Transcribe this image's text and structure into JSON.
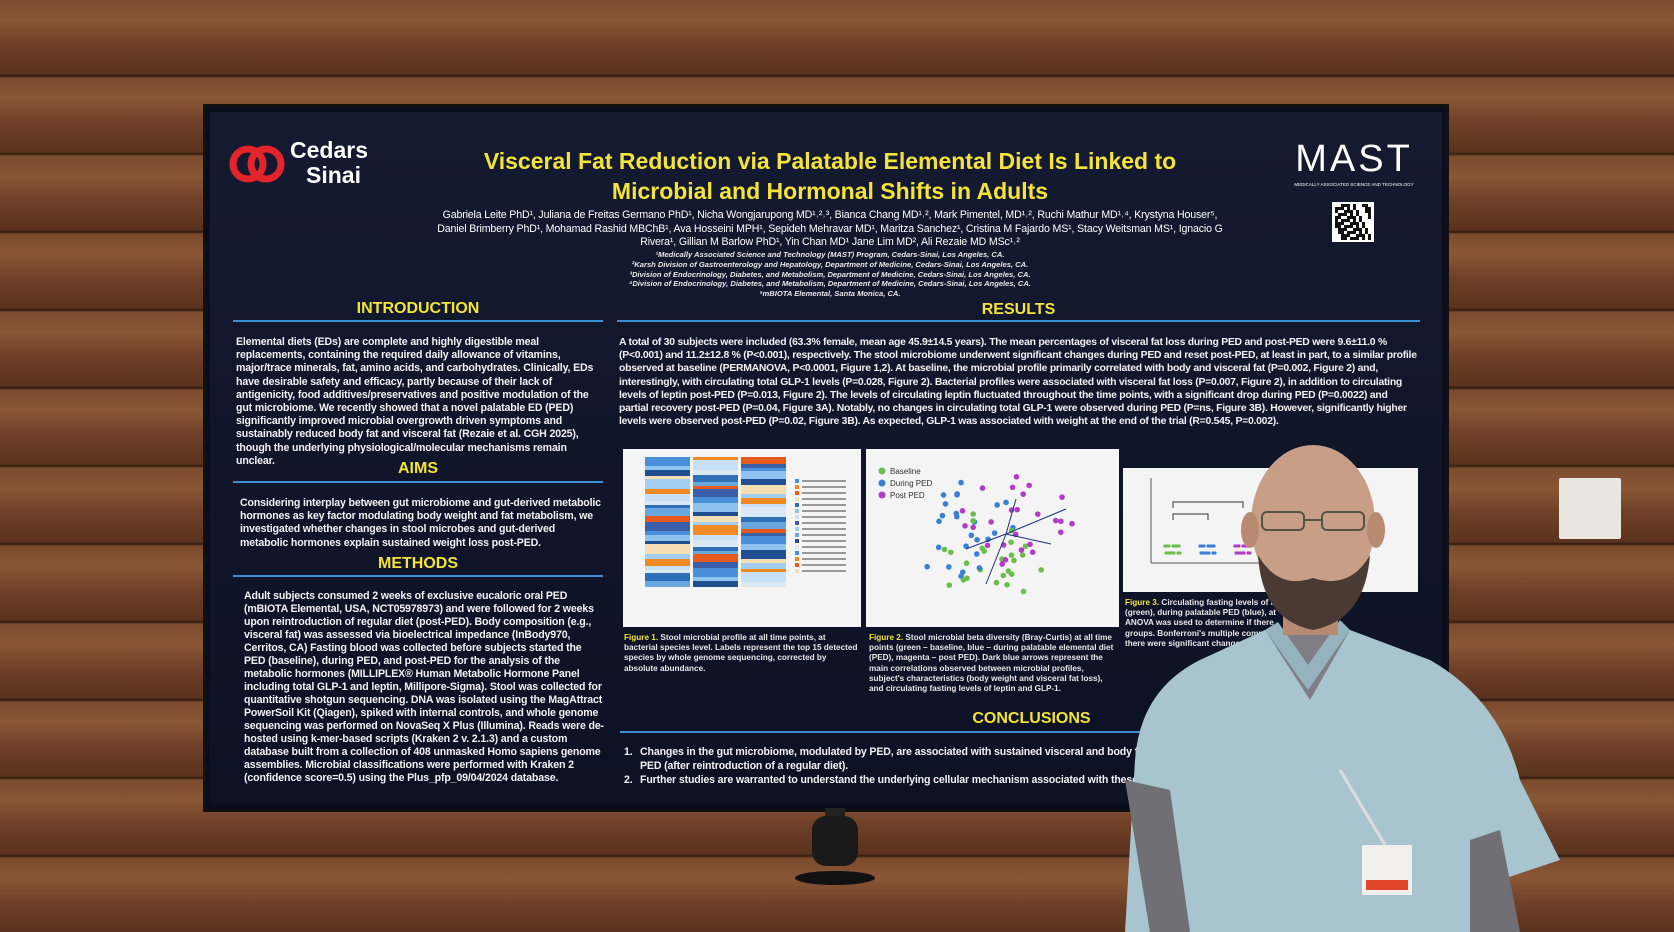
{
  "poster": {
    "logo_left": [
      "Cedars",
      "Sinai"
    ],
    "logo_right": "MAST",
    "logo_right_subtitle": "MEDICALLY ASSOCIATED SCIENCE AND TECHNOLOGY",
    "title": [
      "Visceral Fat Reduction via Palatable Elemental Diet Is Linked to",
      "Microbial and Hormonal Shifts in Adults"
    ],
    "authors": [
      "Gabriela Leite PhD¹, Juliana de Freitas Germano PhD¹, Nicha Wongjarupong MD¹˒²˒³, Bianca Chang MD¹˒², Mark Pimentel, MD¹˒², Ruchi Mathur MD¹˒⁴, Krystyna Houser⁵,",
      "Daniel Brimberry PhD¹, Mohamad Rashid MBChB¹, Ava Hosseini MPH¹, Sepideh Mehravar MD¹, Maritza Sanchez¹, Cristina M Fajardo MS¹, Stacy Weitsman MS¹, Ignacio G",
      "Rivera¹, Gillian M Barlow PhD¹, Yin Chan MD¹ Jane Lim MD², Ali Rezaie MD MSc¹˒²"
    ],
    "affiliations": [
      "¹Medically Associated Science and Technology (MAST) Program, Cedars-Sinai, Los Angeles, CA.",
      "²Karsh Division of Gastroenterology and Hepatology, Department of Medicine, Cedars-Sinai, Los Angeles, CA.",
      "³Division of Endocrinology, Diabetes, and Metabolism, Department of Medicine, Cedars-Sinai, Los Angeles, CA.",
      "⁴Division of Endocrinology, Diabetes, and Metabolism, Department of Medicine, Cedars-Sinai, Los Angeles, CA.",
      "⁵mBIOTA Elemental, Santa Monica, CA."
    ],
    "introduction": {
      "heading": "INTRODUCTION",
      "text": "Elemental diets (EDs) are complete and highly digestible meal replacements, containing the required daily allowance of vitamins, major/trace minerals, fat, amino acids, and carbohydrates. Clinically, EDs have desirable safety and efficacy, partly because of their lack of antigenicity, food additives/preservatives and positive modulation of the gut microbiome. We recently showed that a novel palatable ED (PED) significantly improved microbial overgrowth driven symptoms and sustainably reduced body fat and visceral fat (Rezaie et al. CGH 2025), though the underlying physiological/molecular mechanisms remain unclear."
    },
    "aims": {
      "heading": "AIMS",
      "text": "Considering interplay between gut microbiome and gut-derived metabolic hormones as key factor modulating body weight and fat metabolism, we investigated whether changes in stool microbes and gut-derived metabolic hormones explain sustained weight loss post-PED."
    },
    "methods": {
      "heading": "METHODS",
      "text": "Adult subjects consumed 2 weeks of exclusive eucaloric oral PED (mBIOTA Elemental, USA, NCT05978973) and were followed for 2 weeks upon reintroduction of regular diet (post-PED). Body composition (e.g., visceral fat) was assessed via bioelectrical impedance (InBody970, Cerritos, CA) Fasting blood was collected before subjects started the PED (baseline), during PED, and post-PED for the analysis of the metabolic hormones (MILLIPLEX® Human Metabolic Hormone Panel including total GLP-1 and leptin, Millipore-Sigma). Stool was collected for quantitative shotgun sequencing. DNA was isolated using the MagAttract PowerSoil Kit (Qiagen), spiked with internal controls, and whole genome sequencing was performed on NovaSeq X Plus (Illumina). Reads were de-hosted using k-mer-based scripts (Kraken 2 v. 2.1.3) and a custom database built from a collection of 408 unmasked Homo sapiens genome assemblies. Microbial classifications were performed with Kraken 2 (confidence score=0.5) using the Plus_pfp_09/04/2024 database."
    },
    "results": {
      "heading": "RESULTS",
      "text": "A total of 30 subjects were included (63.3% female, mean age 45.9±14.5 years). The mean percentages of visceral fat loss during PED and post-PED were 9.6±11.0 % (P<0.001) and 11.2±12.8 % (P<0.001), respectively. The stool microbiome underwent significant changes during PED and reset post-PED, at least in part, to a similar profile observed at baseline (PERMANOVA, P<0.0001, Figure 1,2). At baseline, the microbial profile primarily correlated with body and visceral fat (P=0.002, Figure 2) and, interestingly, with circulating total GLP-1 levels (P=0.028, Figure 2). Bacterial profiles were associated with visceral fat loss (P=0.007, Figure 2), in addition to circulating levels of leptin post-PED (P=0.013, Figure 2). The levels of circulating leptin fluctuated throughout the time points, with a significant drop during PED (P=0.0022) and partial recovery post-PED (P=0.04, Figure 3A). Notably, no changes in circulating total GLP-1 were observed during PED (P=ns, Figure 3B). However, significantly higher levels were observed post-PED (P=0.02, Figure 3B). As expected, GLP-1 was associated with weight at the end of the trial (R=0.545, P=0.002)."
    },
    "figures": [
      {
        "label": "Figure 1.",
        "caption": "Stool microbial profile at all time points, at bacterial species level. Labels represent the top 15 detected species by whole genome sequencing, corrected by absolute abundance."
      },
      {
        "label": "Figure 2.",
        "caption": "Stool microbial beta diversity (Bray-Curtis) at all time points (green – baseline, blue – during palatable elemental diet (PED), magenta – post PED). Dark blue arrows represent the main correlations observed between microbial profiles, subject's characteristics (body weight and visceral fat loss), and circulating fasting levels of leptin and GLP-1.",
        "legend": [
          "Baseline",
          "During PED",
          "Post PED"
        ]
      },
      {
        "label": "Figure 3.",
        "caption_lines": [
          "Circulating fasting levels of le",
          "(green), during palatable PED (blue), at",
          "ANOVA was used to determine if there",
          "groups. Bonferroni's multiple compar",
          "there were significant changes"
        ]
      }
    ],
    "conclusions": {
      "heading": "CONCLUSIONS",
      "items": [
        {
          "number": "1.",
          "lines": [
            "Changes in the gut microbiome, modulated by PED, are associated with sustained visceral and body fat l",
            "PED (after reintroduction of a regular diet)."
          ]
        },
        {
          "number": "2.",
          "lines": [
            "Further studies are warranted to understand the underlying cellular mechanism associated with these"
          ]
        }
      ]
    }
  }
}
